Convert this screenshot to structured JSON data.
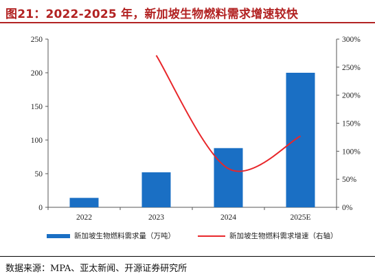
{
  "title": "图21：2022-2025 年，新加坡生物燃料需求增速较快",
  "source": "数据来源：MPA、亚太新闻、开源证券研究所",
  "colors": {
    "bar": "#1a6fc4",
    "line": "#e8262a",
    "title": "#b22222"
  },
  "chart_data": {
    "type": "bar",
    "categories": [
      "2022",
      "2023",
      "2024",
      "2025E"
    ],
    "series": [
      {
        "name": "新加坡生物燃料需求量（万吨）",
        "type": "bar",
        "axis": "left",
        "values": [
          14,
          52,
          88,
          200
        ]
      },
      {
        "name": "新加坡生物燃料需求增速（右轴）",
        "type": "line",
        "axis": "right",
        "smooth": true,
        "values": [
          null,
          271,
          69,
          127
        ]
      }
    ],
    "y_left": {
      "min": 0,
      "max": 250,
      "ticks": [
        "0",
        "50",
        "100",
        "150",
        "200",
        "250"
      ]
    },
    "y_right": {
      "min": 0,
      "max": 300,
      "ticks": [
        "0%",
        "50%",
        "100%",
        "150%",
        "200%",
        "250%",
        "300%"
      ]
    },
    "grid": false,
    "legend": "bottom"
  }
}
